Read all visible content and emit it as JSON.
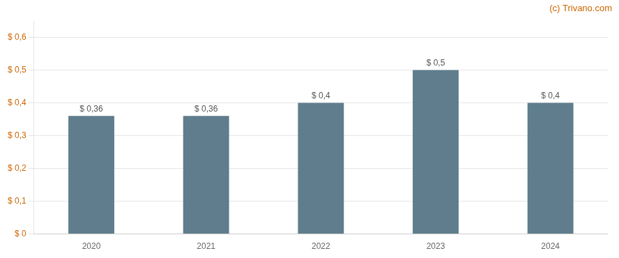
{
  "chart_data": {
    "type": "bar",
    "categories": [
      "2020",
      "2021",
      "2022",
      "2023",
      "2024"
    ],
    "values": [
      0.36,
      0.36,
      0.4,
      0.5,
      0.4
    ],
    "value_labels": [
      "$ 0,36",
      "$ 0,36",
      "$ 0,4",
      "$ 0,5",
      "$ 0,4"
    ],
    "data_labels": true,
    "color": "#5f7d8c",
    "ylim": [
      0,
      0.65
    ],
    "yticks": [
      {
        "value": 0.0,
        "label": "$ 0"
      },
      {
        "value": 0.1,
        "label": "$ 0,1"
      },
      {
        "value": 0.2,
        "label": "$ 0,2"
      },
      {
        "value": 0.3,
        "label": "$ 0,3"
      },
      {
        "value": 0.4,
        "label": "$ 0,4"
      },
      {
        "value": 0.5,
        "label": "$ 0,5"
      },
      {
        "value": 0.6,
        "label": "$ 0,6"
      }
    ],
    "grid": true,
    "annotations": [
      "(c) Trivano.com"
    ]
  }
}
